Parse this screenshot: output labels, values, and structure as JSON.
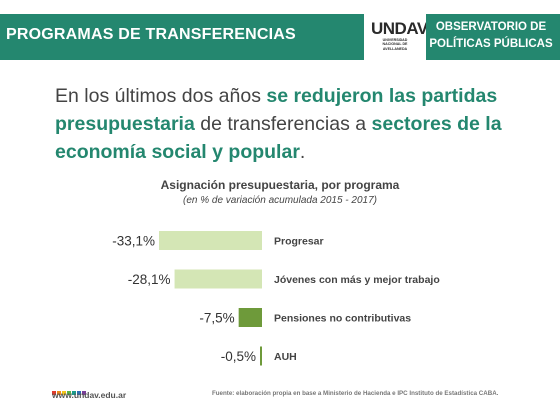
{
  "header": {
    "title": "PROGRAMAS DE TRANSFERENCIAS",
    "logo_word": "UNDAV",
    "logo_sub": [
      "UNIVERSIDAD",
      "NACIONAL DE",
      "AVELLANEDA"
    ],
    "observatory": [
      "OBSERVATORIO DE",
      "POLÍTICAS PÚBLICAS"
    ]
  },
  "headline": {
    "part1": "En los últimos dos años ",
    "bold1": "se redujeron las partidas presupuestaria",
    "part2": " de transferencias a ",
    "bold2": "sectores de la economía social y popular",
    "part3": "."
  },
  "chart_data": {
    "type": "bar",
    "orientation": "horizontal",
    "title": "Asignación presupuestaria,  por programa",
    "subtitle": "(en % de variación acumulada 2015 - 2017)",
    "categories": [
      "Progresar",
      "Jóvenes con más y mejor trabajo",
      "Pensiones no contributivas",
      "AUH"
    ],
    "values": [
      -33.1,
      -28.1,
      -7.5,
      -0.5
    ],
    "value_labels": [
      "-33,1%",
      "-28,1%",
      "-7,5%",
      "-0,5%"
    ],
    "colors": [
      "#d4e6b5",
      "#d4e6b5",
      "#6e9a3a",
      "#6e9a3a"
    ],
    "xlim": [
      -33.1,
      0
    ]
  },
  "footer": {
    "url": "www.undav.edu.ar",
    "source": "Fuente: elaboración propia en base a Ministerio de Hacienda e IPC Instituto de Estadística CABA.",
    "dot_colors": [
      "#e23a2c",
      "#f08a1c",
      "#f5c518",
      "#5bb046",
      "#1a9b8c",
      "#2e6fb5",
      "#7a3f9a"
    ]
  },
  "colors": {
    "brand_green": "#24876f",
    "bar_light": "#d4e6b5",
    "bar_dark": "#6e9a3a"
  }
}
